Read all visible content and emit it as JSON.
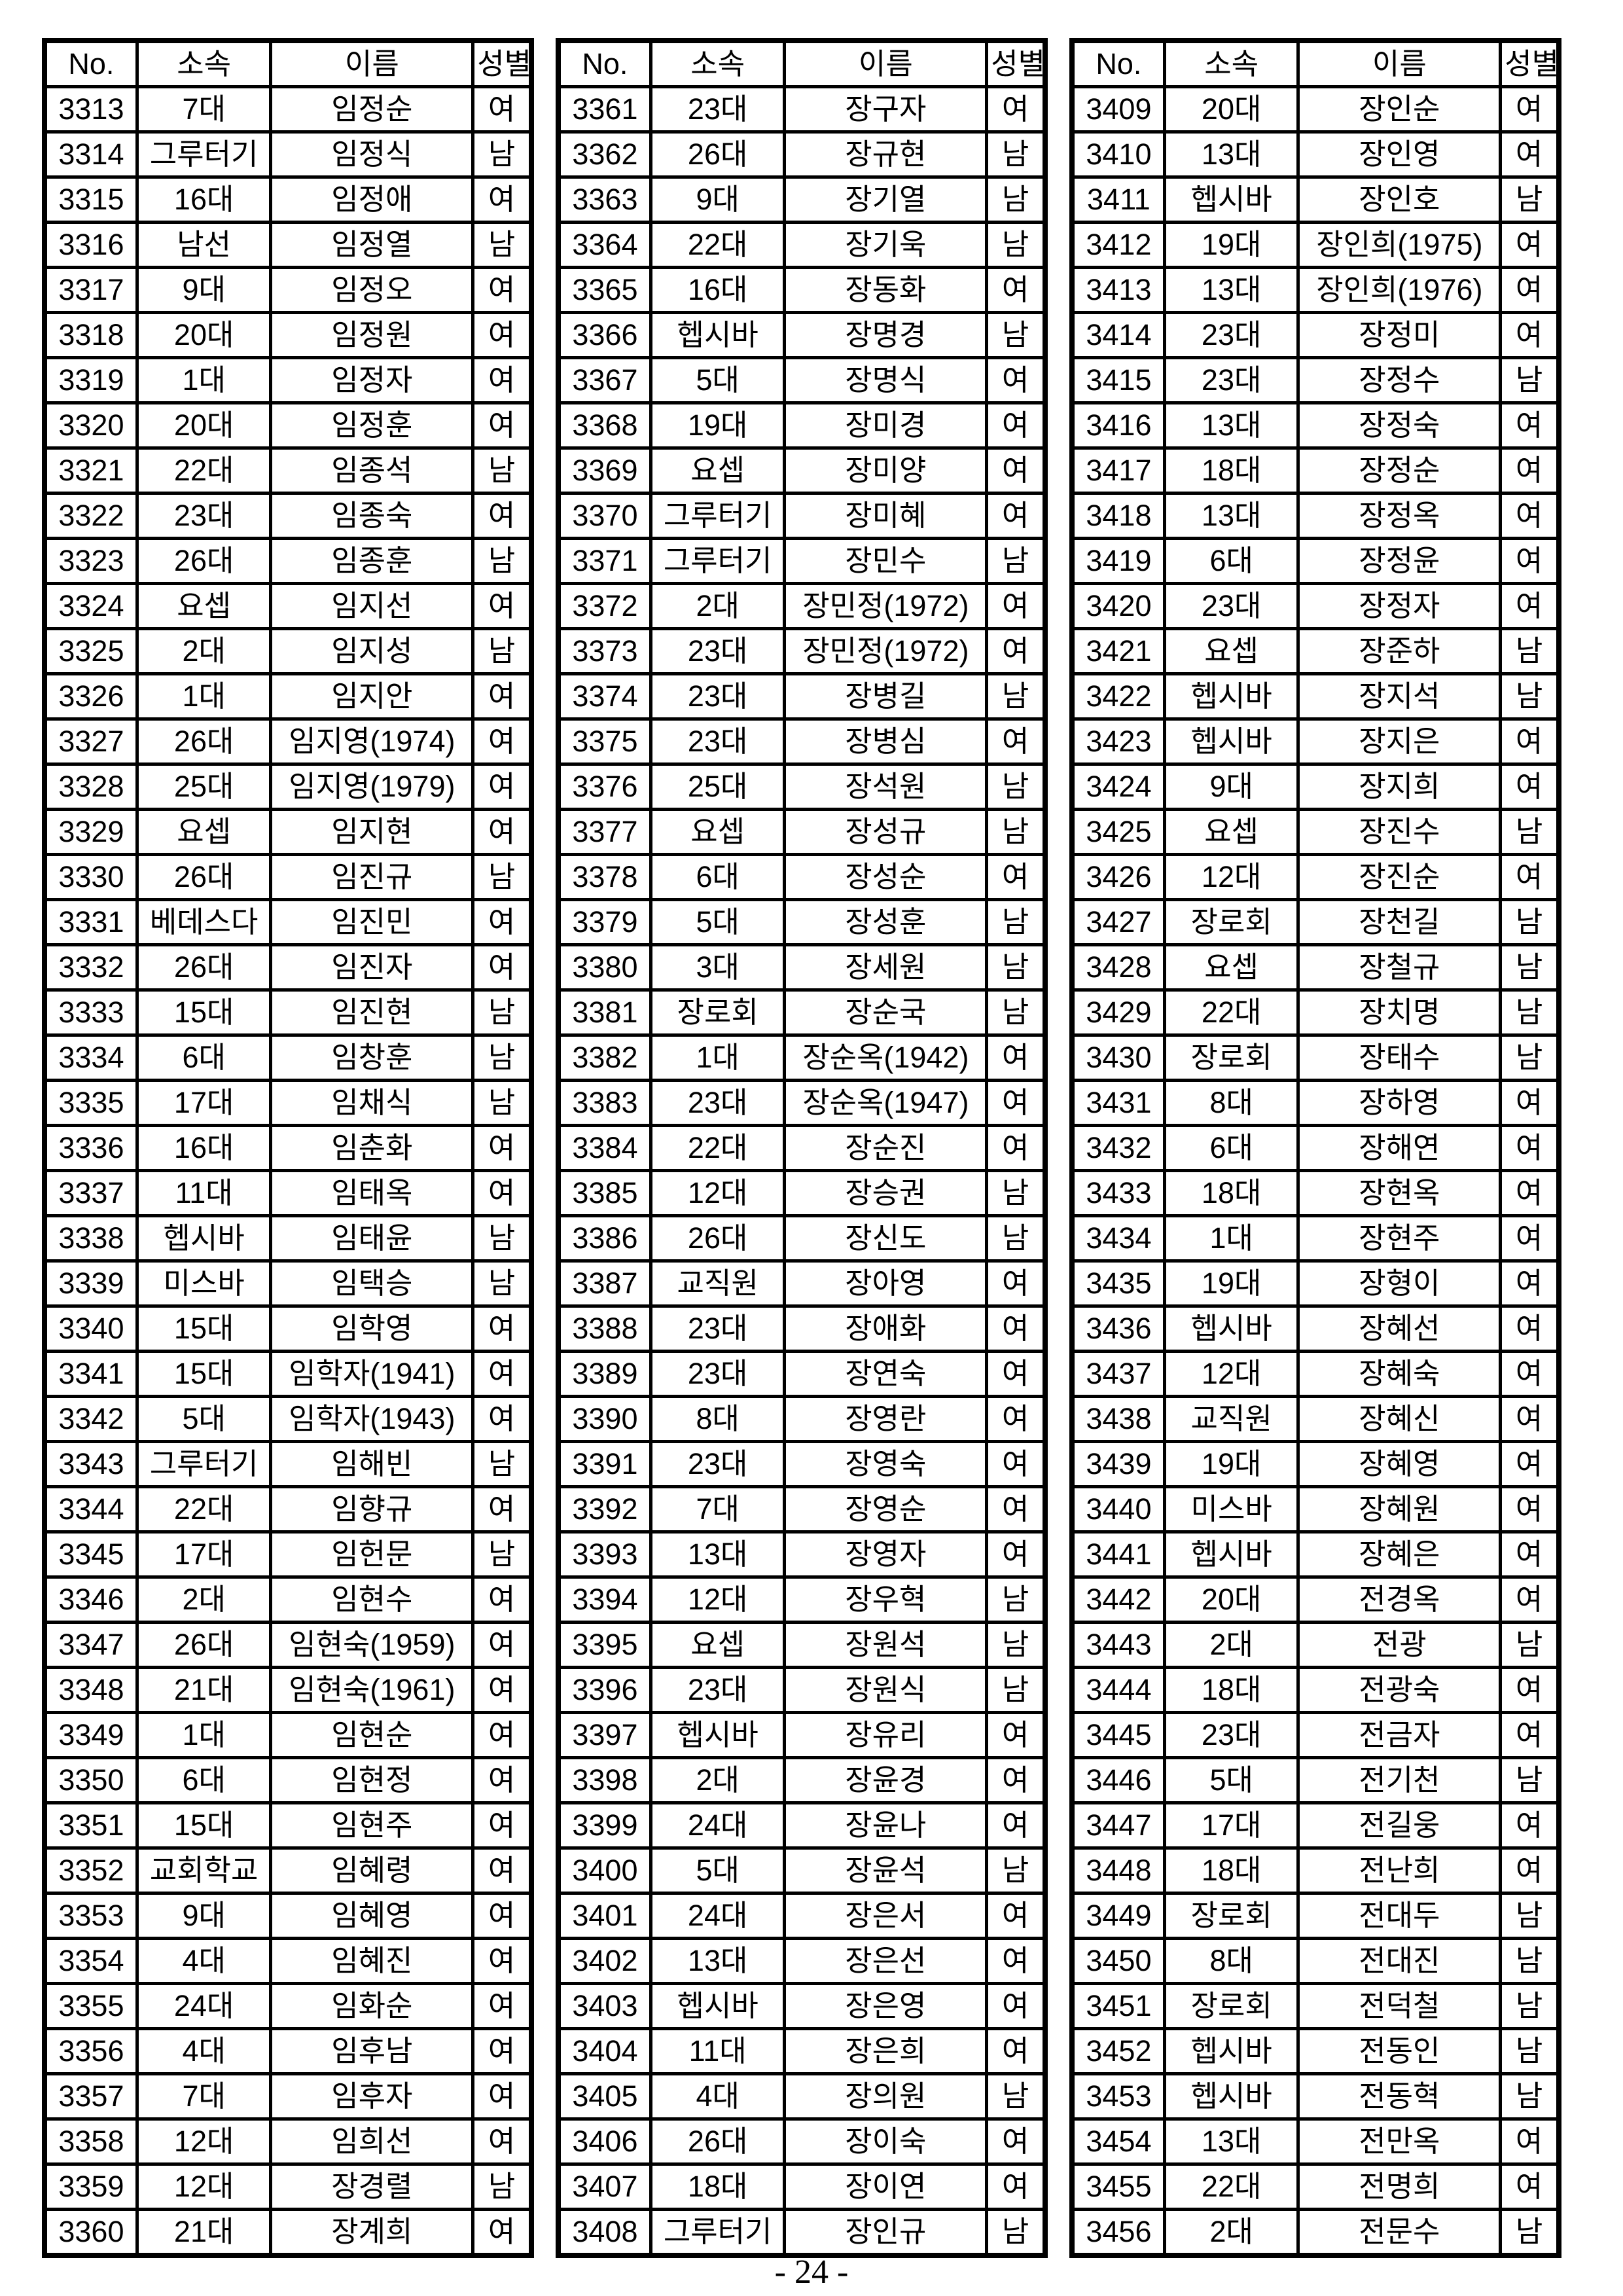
{
  "page": {
    "background_color": "#ffffff",
    "text_color": "#000000",
    "footer_page_number": "- 24 -"
  },
  "columns": [
    "No.",
    "소속",
    "이름",
    "성별"
  ],
  "tables": [
    {
      "rows": [
        [
          "3313",
          "7대",
          "임정순",
          "여"
        ],
        [
          "3314",
          "그루터기",
          "임정식",
          "남"
        ],
        [
          "3315",
          "16대",
          "임정애",
          "여"
        ],
        [
          "3316",
          "남선",
          "임정열",
          "남"
        ],
        [
          "3317",
          "9대",
          "임정오",
          "여"
        ],
        [
          "3318",
          "20대",
          "임정원",
          "여"
        ],
        [
          "3319",
          "1대",
          "임정자",
          "여"
        ],
        [
          "3320",
          "20대",
          "임정훈",
          "여"
        ],
        [
          "3321",
          "22대",
          "임종석",
          "남"
        ],
        [
          "3322",
          "23대",
          "임종숙",
          "여"
        ],
        [
          "3323",
          "26대",
          "임종훈",
          "남"
        ],
        [
          "3324",
          "요셉",
          "임지선",
          "여"
        ],
        [
          "3325",
          "2대",
          "임지성",
          "남"
        ],
        [
          "3326",
          "1대",
          "임지안",
          "여"
        ],
        [
          "3327",
          "26대",
          "임지영(1974)",
          "여"
        ],
        [
          "3328",
          "25대",
          "임지영(1979)",
          "여"
        ],
        [
          "3329",
          "요셉",
          "임지현",
          "여"
        ],
        [
          "3330",
          "26대",
          "임진규",
          "남"
        ],
        [
          "3331",
          "베데스다",
          "임진민",
          "여"
        ],
        [
          "3332",
          "26대",
          "임진자",
          "여"
        ],
        [
          "3333",
          "15대",
          "임진현",
          "남"
        ],
        [
          "3334",
          "6대",
          "임창훈",
          "남"
        ],
        [
          "3335",
          "17대",
          "임채식",
          "남"
        ],
        [
          "3336",
          "16대",
          "임춘화",
          "여"
        ],
        [
          "3337",
          "11대",
          "임태옥",
          "여"
        ],
        [
          "3338",
          "헵시바",
          "임태윤",
          "남"
        ],
        [
          "3339",
          "미스바",
          "임택승",
          "남"
        ],
        [
          "3340",
          "15대",
          "임학영",
          "여"
        ],
        [
          "3341",
          "15대",
          "임학자(1941)",
          "여"
        ],
        [
          "3342",
          "5대",
          "임학자(1943)",
          "여"
        ],
        [
          "3343",
          "그루터기",
          "임해빈",
          "남"
        ],
        [
          "3344",
          "22대",
          "임향규",
          "여"
        ],
        [
          "3345",
          "17대",
          "임헌문",
          "남"
        ],
        [
          "3346",
          "2대",
          "임현수",
          "여"
        ],
        [
          "3347",
          "26대",
          "임현숙(1959)",
          "여"
        ],
        [
          "3348",
          "21대",
          "임현숙(1961)",
          "여"
        ],
        [
          "3349",
          "1대",
          "임현순",
          "여"
        ],
        [
          "3350",
          "6대",
          "임현정",
          "여"
        ],
        [
          "3351",
          "15대",
          "임현주",
          "여"
        ],
        [
          "3352",
          "교회학교",
          "임혜령",
          "여"
        ],
        [
          "3353",
          "9대",
          "임혜영",
          "여"
        ],
        [
          "3354",
          "4대",
          "임혜진",
          "여"
        ],
        [
          "3355",
          "24대",
          "임화순",
          "여"
        ],
        [
          "3356",
          "4대",
          "임후남",
          "여"
        ],
        [
          "3357",
          "7대",
          "임후자",
          "여"
        ],
        [
          "3358",
          "12대",
          "임희선",
          "여"
        ],
        [
          "3359",
          "12대",
          "장경렬",
          "남"
        ],
        [
          "3360",
          "21대",
          "장계희",
          "여"
        ]
      ]
    },
    {
      "rows": [
        [
          "3361",
          "23대",
          "장구자",
          "여"
        ],
        [
          "3362",
          "26대",
          "장규현",
          "남"
        ],
        [
          "3363",
          "9대",
          "장기열",
          "남"
        ],
        [
          "3364",
          "22대",
          "장기욱",
          "남"
        ],
        [
          "3365",
          "16대",
          "장동화",
          "여"
        ],
        [
          "3366",
          "헵시바",
          "장명경",
          "남"
        ],
        [
          "3367",
          "5대",
          "장명식",
          "여"
        ],
        [
          "3368",
          "19대",
          "장미경",
          "여"
        ],
        [
          "3369",
          "요셉",
          "장미양",
          "여"
        ],
        [
          "3370",
          "그루터기",
          "장미혜",
          "여"
        ],
        [
          "3371",
          "그루터기",
          "장민수",
          "남"
        ],
        [
          "3372",
          "2대",
          "장민정(1972)",
          "여"
        ],
        [
          "3373",
          "23대",
          "장민정(1972)",
          "여"
        ],
        [
          "3374",
          "23대",
          "장병길",
          "남"
        ],
        [
          "3375",
          "23대",
          "장병심",
          "여"
        ],
        [
          "3376",
          "25대",
          "장석원",
          "남"
        ],
        [
          "3377",
          "요셉",
          "장성규",
          "남"
        ],
        [
          "3378",
          "6대",
          "장성순",
          "여"
        ],
        [
          "3379",
          "5대",
          "장성훈",
          "남"
        ],
        [
          "3380",
          "3대",
          "장세원",
          "남"
        ],
        [
          "3381",
          "장로회",
          "장순국",
          "남"
        ],
        [
          "3382",
          "1대",
          "장순옥(1942)",
          "여"
        ],
        [
          "3383",
          "23대",
          "장순옥(1947)",
          "여"
        ],
        [
          "3384",
          "22대",
          "장순진",
          "여"
        ],
        [
          "3385",
          "12대",
          "장승권",
          "남"
        ],
        [
          "3386",
          "26대",
          "장신도",
          "남"
        ],
        [
          "3387",
          "교직원",
          "장아영",
          "여"
        ],
        [
          "3388",
          "23대",
          "장애화",
          "여"
        ],
        [
          "3389",
          "23대",
          "장연숙",
          "여"
        ],
        [
          "3390",
          "8대",
          "장영란",
          "여"
        ],
        [
          "3391",
          "23대",
          "장영숙",
          "여"
        ],
        [
          "3392",
          "7대",
          "장영순",
          "여"
        ],
        [
          "3393",
          "13대",
          "장영자",
          "여"
        ],
        [
          "3394",
          "12대",
          "장우혁",
          "남"
        ],
        [
          "3395",
          "요셉",
          "장원석",
          "남"
        ],
        [
          "3396",
          "23대",
          "장원식",
          "남"
        ],
        [
          "3397",
          "헵시바",
          "장유리",
          "여"
        ],
        [
          "3398",
          "2대",
          "장윤경",
          "여"
        ],
        [
          "3399",
          "24대",
          "장윤나",
          "여"
        ],
        [
          "3400",
          "5대",
          "장윤석",
          "남"
        ],
        [
          "3401",
          "24대",
          "장은서",
          "여"
        ],
        [
          "3402",
          "13대",
          "장은선",
          "여"
        ],
        [
          "3403",
          "헵시바",
          "장은영",
          "여"
        ],
        [
          "3404",
          "11대",
          "장은희",
          "여"
        ],
        [
          "3405",
          "4대",
          "장의원",
          "남"
        ],
        [
          "3406",
          "26대",
          "장이숙",
          "여"
        ],
        [
          "3407",
          "18대",
          "장이연",
          "여"
        ],
        [
          "3408",
          "그루터기",
          "장인규",
          "남"
        ]
      ]
    },
    {
      "rows": [
        [
          "3409",
          "20대",
          "장인순",
          "여"
        ],
        [
          "3410",
          "13대",
          "장인영",
          "여"
        ],
        [
          "3411",
          "헵시바",
          "장인호",
          "남"
        ],
        [
          "3412",
          "19대",
          "장인희(1975)",
          "여"
        ],
        [
          "3413",
          "13대",
          "장인희(1976)",
          "여"
        ],
        [
          "3414",
          "23대",
          "장정미",
          "여"
        ],
        [
          "3415",
          "23대",
          "장정수",
          "남"
        ],
        [
          "3416",
          "13대",
          "장정숙",
          "여"
        ],
        [
          "3417",
          "18대",
          "장정순",
          "여"
        ],
        [
          "3418",
          "13대",
          "장정옥",
          "여"
        ],
        [
          "3419",
          "6대",
          "장정윤",
          "여"
        ],
        [
          "3420",
          "23대",
          "장정자",
          "여"
        ],
        [
          "3421",
          "요셉",
          "장준하",
          "남"
        ],
        [
          "3422",
          "헵시바",
          "장지석",
          "남"
        ],
        [
          "3423",
          "헵시바",
          "장지은",
          "여"
        ],
        [
          "3424",
          "9대",
          "장지희",
          "여"
        ],
        [
          "3425",
          "요셉",
          "장진수",
          "남"
        ],
        [
          "3426",
          "12대",
          "장진순",
          "여"
        ],
        [
          "3427",
          "장로회",
          "장천길",
          "남"
        ],
        [
          "3428",
          "요셉",
          "장철규",
          "남"
        ],
        [
          "3429",
          "22대",
          "장치명",
          "남"
        ],
        [
          "3430",
          "장로회",
          "장태수",
          "남"
        ],
        [
          "3431",
          "8대",
          "장하영",
          "여"
        ],
        [
          "3432",
          "6대",
          "장해연",
          "여"
        ],
        [
          "3433",
          "18대",
          "장현옥",
          "여"
        ],
        [
          "3434",
          "1대",
          "장현주",
          "여"
        ],
        [
          "3435",
          "19대",
          "장형이",
          "여"
        ],
        [
          "3436",
          "헵시바",
          "장혜선",
          "여"
        ],
        [
          "3437",
          "12대",
          "장혜숙",
          "여"
        ],
        [
          "3438",
          "교직원",
          "장혜신",
          "여"
        ],
        [
          "3439",
          "19대",
          "장혜영",
          "여"
        ],
        [
          "3440",
          "미스바",
          "장혜원",
          "여"
        ],
        [
          "3441",
          "헵시바",
          "장혜은",
          "여"
        ],
        [
          "3442",
          "20대",
          "전경옥",
          "여"
        ],
        [
          "3443",
          "2대",
          "전광",
          "남"
        ],
        [
          "3444",
          "18대",
          "전광숙",
          "여"
        ],
        [
          "3445",
          "23대",
          "전금자",
          "여"
        ],
        [
          "3446",
          "5대",
          "전기천",
          "남"
        ],
        [
          "3447",
          "17대",
          "전길웅",
          "여"
        ],
        [
          "3448",
          "18대",
          "전난희",
          "여"
        ],
        [
          "3449",
          "장로회",
          "전대두",
          "남"
        ],
        [
          "3450",
          "8대",
          "전대진",
          "남"
        ],
        [
          "3451",
          "장로회",
          "전덕철",
          "남"
        ],
        [
          "3452",
          "헵시바",
          "전동인",
          "남"
        ],
        [
          "3453",
          "헵시바",
          "전동혁",
          "남"
        ],
        [
          "3454",
          "13대",
          "전만옥",
          "여"
        ],
        [
          "3455",
          "22대",
          "전명희",
          "여"
        ],
        [
          "3456",
          "2대",
          "전문수",
          "남"
        ]
      ]
    }
  ]
}
